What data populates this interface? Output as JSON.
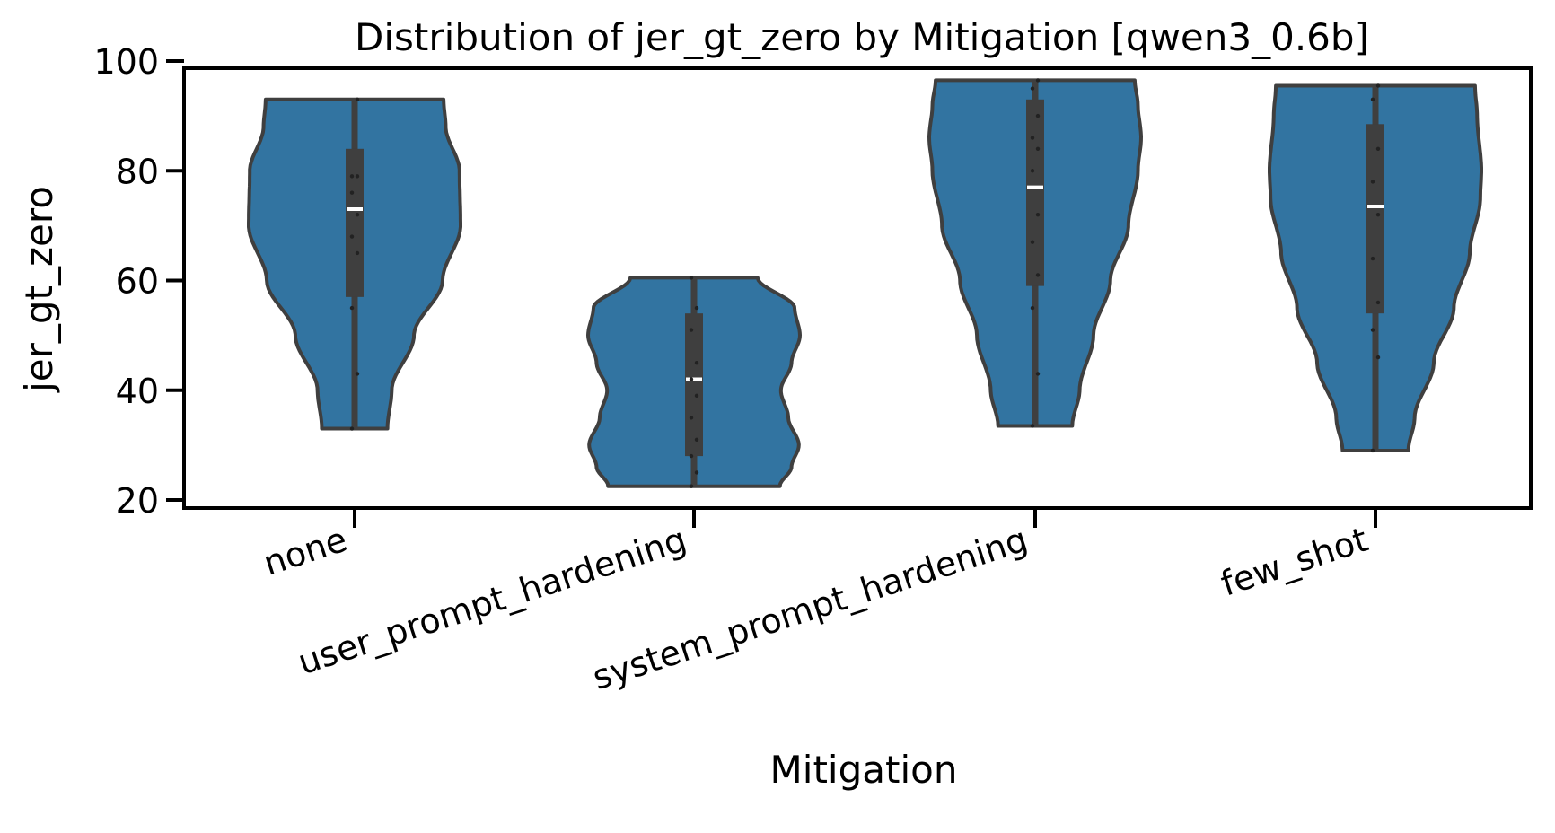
{
  "chart_data": {
    "type": "violin",
    "title": "Distribution of jer_gt_zero by Mitigation [qwen3_0.6b]",
    "xlabel": "Mitigation",
    "ylabel": "jer_gt_zero",
    "ylim": [
      20,
      100
    ],
    "yticks": [
      20,
      40,
      60,
      80,
      100
    ],
    "grid": false,
    "legend": "none",
    "colors": {
      "fill": "#3274a1",
      "edge": "#3f3f3f",
      "box": "#3f3f3f",
      "median": "#ffffff"
    },
    "categories": [
      "none",
      "user_prompt_hardening",
      "system_prompt_hardening",
      "few_shot"
    ],
    "series": [
      {
        "category": "none",
        "min": 33,
        "max": 93,
        "q1": 57,
        "median": 73,
        "q3": 84,
        "points": [
          33,
          43,
          55,
          65,
          68,
          72,
          76,
          79,
          79,
          93
        ],
        "density": [
          [
            33,
            0.31
          ],
          [
            40,
            0.35
          ],
          [
            50,
            0.56
          ],
          [
            60,
            0.83
          ],
          [
            70,
            1.0
          ],
          [
            80,
            0.99
          ],
          [
            88,
            0.86
          ],
          [
            93,
            0.84
          ]
        ]
      },
      {
        "category": "user_prompt_hardening",
        "min": 22.5,
        "max": 60.5,
        "q1": 28,
        "median": 42,
        "q3": 54,
        "points": [
          22.5,
          25,
          28,
          31,
          35,
          39,
          42,
          45,
          51,
          55,
          60.5
        ],
        "density": [
          [
            22.5,
            0.81
          ],
          [
            26,
            0.92
          ],
          [
            30,
            0.99
          ],
          [
            35,
            0.89
          ],
          [
            40,
            0.82
          ],
          [
            45,
            0.92
          ],
          [
            50,
            1.0
          ],
          [
            55,
            0.95
          ],
          [
            60.5,
            0.6
          ]
        ]
      },
      {
        "category": "system_prompt_hardening",
        "min": 33.5,
        "max": 96.5,
        "q1": 59,
        "median": 77,
        "q3": 93,
        "points": [
          33.5,
          43,
          55,
          61,
          67,
          72,
          80,
          84,
          86,
          90,
          95,
          96.5
        ],
        "density": [
          [
            33.5,
            0.35
          ],
          [
            40,
            0.42
          ],
          [
            50,
            0.55
          ],
          [
            60,
            0.71
          ],
          [
            70,
            0.88
          ],
          [
            80,
            0.97
          ],
          [
            86,
            1.0
          ],
          [
            92,
            0.97
          ],
          [
            96.5,
            0.94
          ]
        ]
      },
      {
        "category": "few_shot",
        "min": 29,
        "max": 95.5,
        "q1": 54,
        "median": 73.5,
        "q3": 88.5,
        "points": [
          29,
          46,
          51,
          56,
          64,
          72,
          78,
          84,
          93,
          95.5
        ],
        "density": [
          [
            29,
            0.31
          ],
          [
            35,
            0.37
          ],
          [
            45,
            0.55
          ],
          [
            55,
            0.74
          ],
          [
            65,
            0.89
          ],
          [
            75,
            0.99
          ],
          [
            80,
            1.0
          ],
          [
            90,
            0.96
          ],
          [
            95.5,
            0.94
          ]
        ]
      }
    ]
  }
}
